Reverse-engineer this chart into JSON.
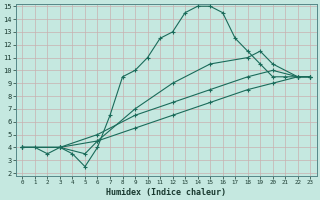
{
  "xlabel": "Humidex (Indice chaleur)",
  "bg_color": "#c5e8e0",
  "grid_color": "#c8b0b0",
  "line_color": "#1a6b5a",
  "axis_bg": "#5a9090",
  "xlim": [
    -0.5,
    23.5
  ],
  "ylim": [
    2,
    15
  ],
  "xticks": [
    0,
    1,
    2,
    3,
    4,
    5,
    6,
    7,
    8,
    9,
    10,
    11,
    12,
    13,
    14,
    15,
    16,
    17,
    18,
    19,
    20,
    21,
    22,
    23
  ],
  "yticks": [
    2,
    3,
    4,
    5,
    6,
    7,
    8,
    9,
    10,
    11,
    12,
    13,
    14,
    15
  ],
  "series": [
    {
      "x": [
        0,
        1,
        2,
        3,
        4,
        5,
        6,
        7,
        8,
        9,
        10,
        11,
        12,
        13,
        14,
        15,
        16,
        17,
        18,
        19,
        20,
        21,
        22,
        23
      ],
      "y": [
        4,
        4,
        3.5,
        4,
        3.5,
        2.5,
        4.0,
        6.5,
        9.5,
        10,
        11,
        12.5,
        13,
        14.5,
        15,
        15,
        14.5,
        12.5,
        11.5,
        10.5,
        9.5,
        9.5,
        9.5,
        9.5
      ]
    },
    {
      "x": [
        0,
        3,
        6,
        9,
        12,
        15,
        18,
        20,
        22,
        23
      ],
      "y": [
        4,
        4,
        4.5,
        5.5,
        6.5,
        7.5,
        8.5,
        9.0,
        9.5,
        9.5
      ]
    },
    {
      "x": [
        0,
        3,
        6,
        9,
        12,
        15,
        18,
        20,
        22,
        23
      ],
      "y": [
        4,
        4,
        5.0,
        6.5,
        7.5,
        8.5,
        9.5,
        10.0,
        9.5,
        9.5
      ]
    },
    {
      "x": [
        0,
        3,
        5,
        6,
        9,
        12,
        15,
        18,
        19,
        20,
        22,
        23
      ],
      "y": [
        4,
        4,
        3.5,
        4.5,
        7.0,
        9.0,
        10.5,
        11.0,
        11.5,
        10.5,
        9.5,
        9.5
      ]
    }
  ]
}
